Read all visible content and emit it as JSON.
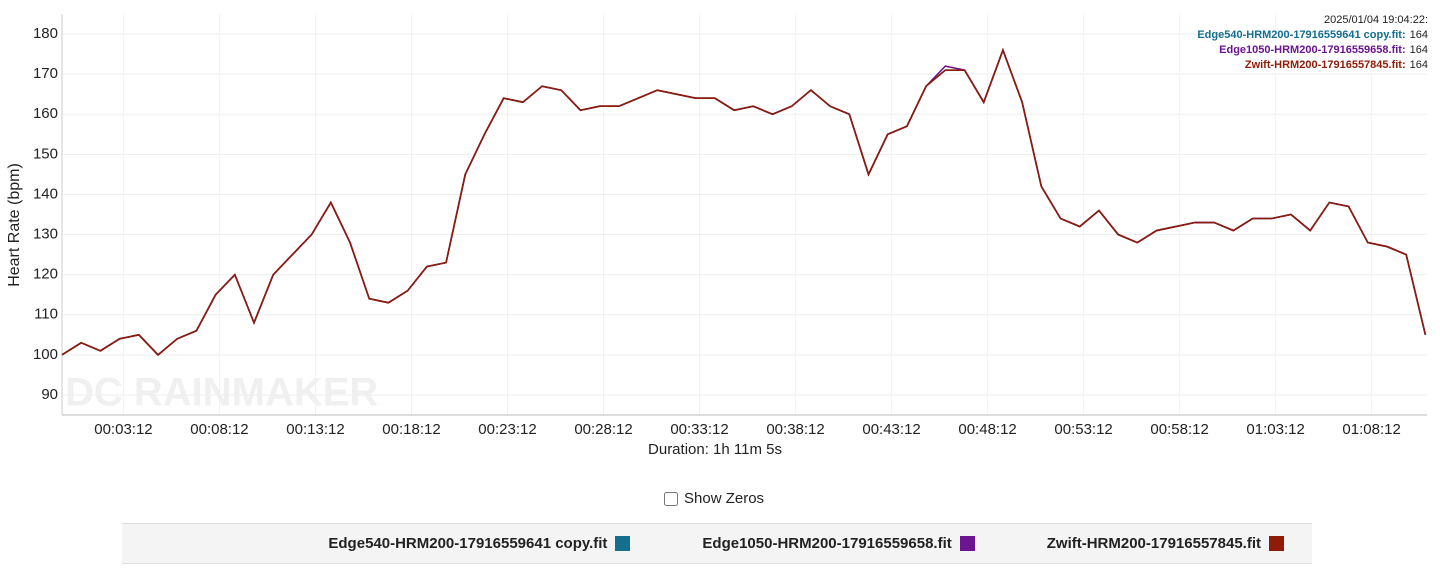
{
  "chart_data": {
    "type": "line",
    "y_label": "Heart Rate (bpm)",
    "x_label": "Duration: 1h 11m 5s",
    "watermark": "DC RAINMAKER",
    "grid": true,
    "xlim": [
      0,
      4265
    ],
    "ylim": [
      85,
      185
    ],
    "yticks": [
      90,
      100,
      110,
      120,
      130,
      140,
      150,
      160,
      170,
      180
    ],
    "xticks": [
      {
        "value": 192,
        "label": "00:03:12"
      },
      {
        "value": 492,
        "label": "00:08:12"
      },
      {
        "value": 792,
        "label": "00:13:12"
      },
      {
        "value": 1092,
        "label": "00:18:12"
      },
      {
        "value": 1392,
        "label": "00:23:12"
      },
      {
        "value": 1692,
        "label": "00:28:12"
      },
      {
        "value": 1992,
        "label": "00:33:12"
      },
      {
        "value": 2292,
        "label": "00:38:12"
      },
      {
        "value": 2592,
        "label": "00:43:12"
      },
      {
        "value": 2892,
        "label": "00:48:12"
      },
      {
        "value": 3192,
        "label": "00:53:12"
      },
      {
        "value": 3492,
        "label": "00:58:12"
      },
      {
        "value": 3792,
        "label": "01:03:12"
      },
      {
        "value": 4092,
        "label": "01:08:12"
      }
    ],
    "x": [
      0,
      60,
      120,
      180,
      240,
      300,
      360,
      420,
      480,
      540,
      600,
      660,
      720,
      780,
      840,
      900,
      960,
      1020,
      1080,
      1140,
      1200,
      1260,
      1320,
      1380,
      1440,
      1500,
      1560,
      1620,
      1680,
      1740,
      1800,
      1860,
      1920,
      1980,
      2040,
      2100,
      2160,
      2220,
      2280,
      2340,
      2400,
      2460,
      2520,
      2580,
      2640,
      2700,
      2760,
      2820,
      2880,
      2940,
      3000,
      3060,
      3120,
      3180,
      3240,
      3300,
      3360,
      3420,
      3480,
      3540,
      3600,
      3660,
      3720,
      3780,
      3840,
      3900,
      3960,
      4020,
      4080,
      4140,
      4200,
      4260
    ],
    "series": [
      {
        "name": "Edge540-HRM200-17916559641 copy.fit",
        "color": "#146f8f",
        "values": [
          100,
          103,
          101,
          104,
          105,
          100,
          104,
          106,
          115,
          120,
          108,
          120,
          125,
          130,
          138,
          128,
          114,
          113,
          116,
          122,
          123,
          145,
          155,
          164,
          163,
          167,
          166,
          161,
          162,
          162,
          164,
          166,
          165,
          164,
          164,
          161,
          162,
          160,
          162,
          166,
          162,
          160,
          145,
          155,
          157,
          167,
          171,
          171,
          163,
          176,
          163,
          142,
          134,
          132,
          136,
          130,
          128,
          131,
          132,
          133,
          133,
          131,
          134,
          134,
          135,
          131,
          138,
          137,
          128,
          127,
          125,
          105
        ]
      },
      {
        "name": "Edge1050-HRM200-17916559658.fit",
        "color": "#6b1591",
        "values": [
          100,
          103,
          101,
          104,
          105,
          100,
          104,
          106,
          115,
          120,
          108,
          120,
          125,
          130,
          138,
          128,
          114,
          113,
          116,
          122,
          123,
          145,
          155,
          164,
          163,
          167,
          166,
          161,
          162,
          162,
          164,
          166,
          165,
          164,
          164,
          161,
          162,
          160,
          162,
          166,
          162,
          160,
          145,
          155,
          157,
          167,
          172,
          171,
          163,
          176,
          163,
          142,
          134,
          132,
          136,
          130,
          128,
          131,
          132,
          133,
          133,
          131,
          134,
          134,
          135,
          131,
          138,
          137,
          128,
          127,
          125,
          105
        ]
      },
      {
        "name": "Zwift-HRM200-17916557845.fit",
        "color": "#8f1c07",
        "values": [
          100,
          103,
          101,
          104,
          105,
          100,
          104,
          106,
          115,
          120,
          108,
          120,
          125,
          130,
          138,
          128,
          114,
          113,
          116,
          122,
          123,
          145,
          155,
          164,
          163,
          167,
          166,
          161,
          162,
          162,
          164,
          166,
          165,
          164,
          164,
          161,
          162,
          160,
          162,
          166,
          162,
          160,
          145,
          155,
          157,
          167,
          171,
          171,
          163,
          176,
          163,
          142,
          134,
          132,
          136,
          130,
          128,
          131,
          132,
          133,
          133,
          131,
          134,
          134,
          135,
          131,
          138,
          137,
          128,
          127,
          125,
          105
        ]
      }
    ],
    "tooltip": {
      "title": "2025/01/04 19:04:22:",
      "entries": [
        {
          "label": "Edge540-HRM200-17916559641 copy.fit:",
          "value": 164
        },
        {
          "label": "Edge1050-HRM200-17916559658.fit:",
          "value": 164
        },
        {
          "label": "Zwift-HRM200-17916557845.fit:",
          "value": 164
        }
      ]
    }
  },
  "controls": {
    "show_zeros": "Show Zeros"
  }
}
